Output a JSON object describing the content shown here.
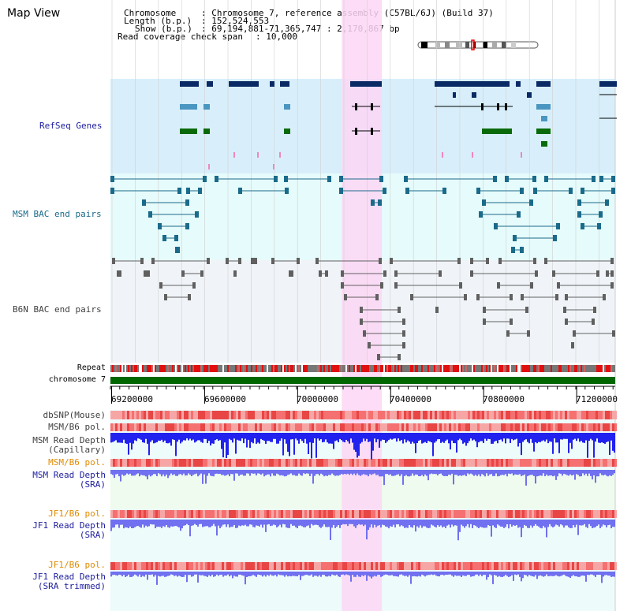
{
  "window": {
    "title": "Map View"
  },
  "info": {
    "chromosome_key": "Chromosome",
    "chromosome_value": ": Chromosome 7, reference assembly (C57BL/6J) (Build 37)",
    "length_key": "Length (b.p.)",
    "length_value": ": 152,524,553",
    "show_key": "Show (b.p.)",
    "show_value": ": 69,194,881-71,365,747 : 2,170,867 bp",
    "coverage_key": "Read coverage check span",
    "coverage_value": ": 10,000"
  },
  "tracks": {
    "refseq": "RefSeq Genes",
    "msm_bac": "MSM BAC end pairs",
    "b6n_bac": "B6N BAC end pairs",
    "repeat": "Repeat",
    "chromosome": "chromosome 7",
    "dbsnp": "dbSNP(Mouse)",
    "msm_b6_pol_1": "MSM/B6 pol.",
    "msm_depth_cap_1": "MSM Read Depth",
    "msm_depth_cap_2": "(Capillary)",
    "msm_b6_pol_2": "MSM/B6 pol.",
    "msm_depth_sra_1": "MSM Read Depth",
    "msm_depth_sra_2": "(SRA)",
    "jf1_b6_pol_1": "JF1/B6 pol.",
    "jf1_depth_sra_1": "JF1 Read Depth",
    "jf1_depth_sra_2": "(SRA)",
    "jf1_b6_pol_2": "JF1/B6 pol.",
    "jf1_depth_trim_1": "JF1 Read Depth",
    "jf1_depth_trim_2": "(SRA trimmed)"
  },
  "axis": {
    "ticks": [
      "69200000",
      "69600000",
      "70000000",
      "70400000",
      "70800000",
      "71200000"
    ],
    "tick_values": [
      69200000,
      69600000,
      70000000,
      70400000,
      70800000,
      71200000
    ],
    "range": [
      69194881,
      71365747
    ]
  },
  "selection": {
    "start": 70190000,
    "end": 70362000
  },
  "colors": {
    "refseq_bg": "#d8effb",
    "msm_bg": "#e6fbfb",
    "b6n_bg": "#f0f4f8",
    "highlight": "#fbd6f4",
    "gene_dark": "#0a2a66",
    "gene_mid": "#4a96c0",
    "gene_green": "#0a6a0a",
    "msm_pair": "#1a6a8a",
    "b6n_pair": "#606060",
    "depth_blue": "#2222ee",
    "sra_blue": "#7070f0",
    "label_blue": "#2020a0",
    "label_teal": "#1a6a8a",
    "label_orange": "#e08a00",
    "label_gray": "#404040"
  }
}
